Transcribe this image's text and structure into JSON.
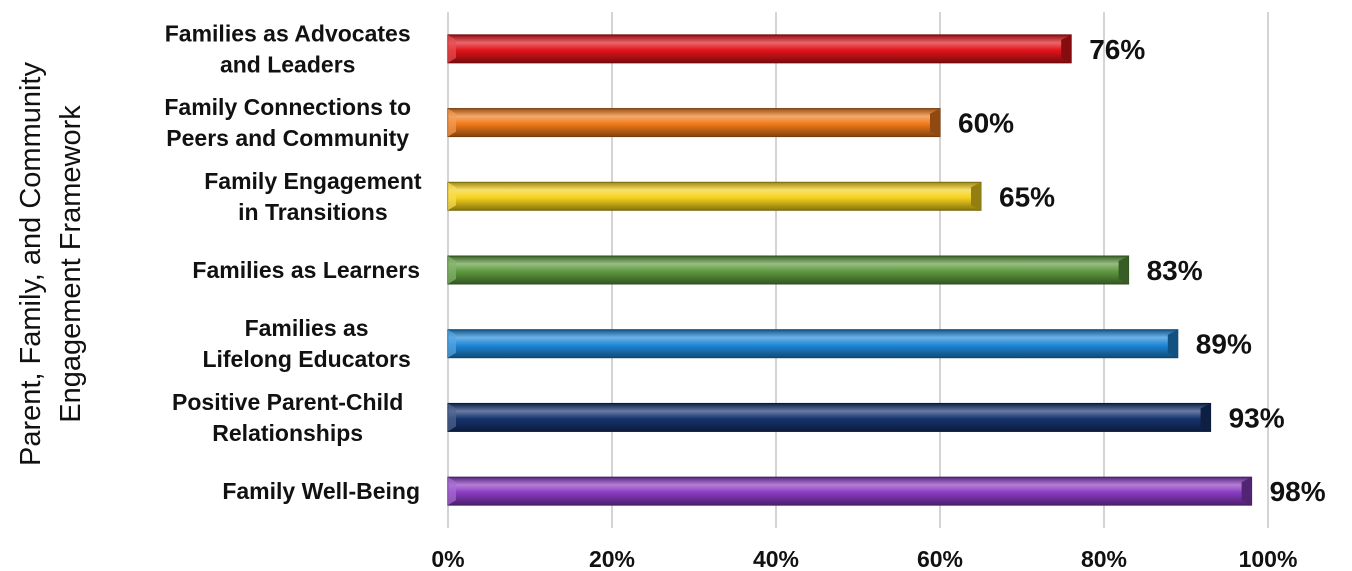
{
  "chart_data": {
    "type": "bar",
    "orientation": "horizontal",
    "ylabel": "Parent, Family, and Community Engagement Framework",
    "xlabel": "",
    "title": "",
    "xlim": [
      0,
      100
    ],
    "x_ticks": [
      "0%",
      "20%",
      "40%",
      "60%",
      "80%",
      "100%"
    ],
    "grid": "vertical",
    "legend": "none",
    "categories": [
      [
        "Families as Advocates",
        "and Leaders"
      ],
      [
        "Family Connections to",
        "Peers and Community"
      ],
      [
        "Family Engagement",
        "in Transitions"
      ],
      [
        "Families as Learners"
      ],
      [
        "Families as",
        "Lifelong Educators"
      ],
      [
        "Positive Parent-Child",
        "Relationships"
      ],
      [
        "Family Well-Being"
      ]
    ],
    "values": [
      76,
      60,
      65,
      83,
      89,
      93,
      98
    ],
    "data_labels": [
      "76%",
      "60%",
      "65%",
      "83%",
      "89%",
      "93%",
      "98%"
    ],
    "colors": [
      "#e0141a",
      "#f07a1a",
      "#f5d21c",
      "#5e9a3e",
      "#1e88d8",
      "#15336e",
      "#8a3bc2"
    ]
  }
}
